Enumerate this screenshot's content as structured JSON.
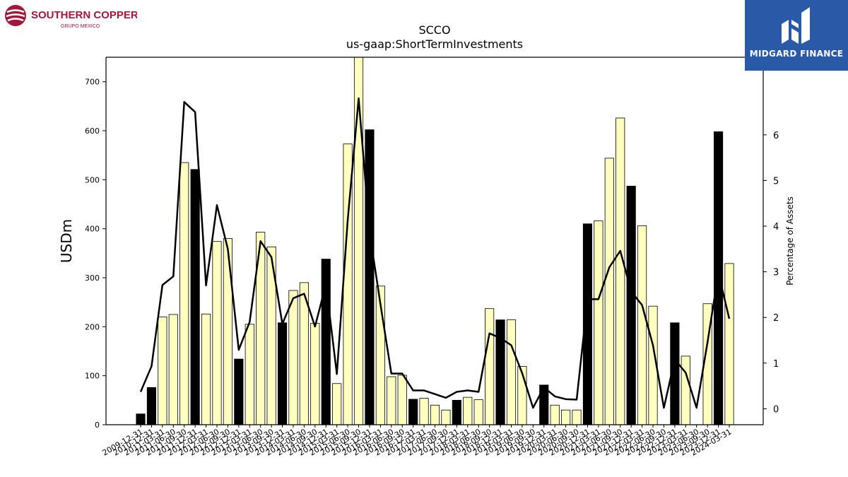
{
  "logos": {
    "left_name": "SOUTHERN COPPER",
    "left_sub": "GRUPO MEXICO",
    "right_name": "MIDGARD FINANCE",
    "left_color": "#a5173a",
    "right_bg": "#2a59a8"
  },
  "chart_data": {
    "type": "bar",
    "title": "SCCO",
    "subtitle": "us-gaap:ShortTermInvestments",
    "ylabel": "USDm",
    "y2label": "Percentage of Assets",
    "ylim": [
      0,
      750
    ],
    "y2lim": [
      -0.35,
      7.7
    ],
    "yticks": [
      0,
      100,
      200,
      300,
      400,
      500,
      600,
      700
    ],
    "y2ticks": [
      0,
      1,
      2,
      3,
      4,
      5,
      6
    ],
    "categories": [
      "2009-12-31",
      "2010-12-31",
      "2011-03-31",
      "2011-06-30",
      "2011-09-30",
      "2011-12-31",
      "2012-03-31",
      "2012-06-30",
      "2012-09-30",
      "2012-12-31",
      "2013-03-31",
      "2013-06-30",
      "2013-09-30",
      "2013-12-31",
      "2014-03-31",
      "2014-06-30",
      "2014-09-30",
      "2014-12-31",
      "2015-03-31",
      "2015-06-30",
      "2015-09-30",
      "2015-12-31",
      "2016-03-31",
      "2016-06-30",
      "2016-09-30",
      "2016-12-31",
      "2017-03-31",
      "2017-06-30",
      "2017-09-30",
      "2017-12-31",
      "2018-03-31",
      "2018-06-30",
      "2018-09-30",
      "2018-12-31",
      "2019-03-31",
      "2019-06-30",
      "2019-09-30",
      "2019-12-31",
      "2020-03-31",
      "2020-06-30",
      "2020-09-30",
      "2020-12-31",
      "2021-03-31",
      "2021-06-30",
      "2021-09-30",
      "2021-12-31",
      "2022-03-31",
      "2022-06-30",
      "2022-09-30",
      "2022-12-31",
      "2023-03-31",
      "2023-06-30",
      "2023-09-30",
      "2023-12-31",
      "2024-03-31"
    ],
    "values": [
      22,
      76,
      220,
      225,
      535,
      521,
      226,
      374,
      380,
      134,
      205,
      393,
      363,
      208,
      274,
      290,
      207,
      338,
      84,
      573,
      750,
      602,
      283,
      98,
      101,
      52,
      54,
      40,
      30,
      50,
      56,
      51,
      237,
      214,
      214,
      119,
      0,
      81,
      40,
      30,
      30,
      410,
      416,
      544,
      626,
      487,
      406,
      242,
      0,
      208,
      140,
      0,
      247,
      598,
      329
    ],
    "highlight": [
      true,
      true,
      false,
      false,
      false,
      true,
      false,
      false,
      false,
      true,
      false,
      false,
      false,
      true,
      false,
      false,
      false,
      true,
      false,
      false,
      false,
      true,
      false,
      false,
      false,
      true,
      false,
      false,
      false,
      true,
      false,
      false,
      false,
      true,
      false,
      false,
      false,
      true,
      false,
      false,
      false,
      true,
      false,
      false,
      false,
      true,
      false,
      false,
      false,
      true,
      false,
      false,
      false,
      true,
      false
    ],
    "pct_assets": [
      0.37,
      0.93,
      2.71,
      2.9,
      6.72,
      6.5,
      2.7,
      4.46,
      3.5,
      1.29,
      1.9,
      3.67,
      3.32,
      1.86,
      2.42,
      2.52,
      1.8,
      2.73,
      0.76,
      4.14,
      6.8,
      3.87,
      2.29,
      0.77,
      0.77,
      0.4,
      0.4,
      0.32,
      0.24,
      0.37,
      0.4,
      0.37,
      1.65,
      1.55,
      1.39,
      0.78,
      0.02,
      0.47,
      0.27,
      0.21,
      0.2,
      2.4,
      2.4,
      3.1,
      3.46,
      2.57,
      2.27,
      1.39,
      0.02,
      1.08,
      0.79,
      0.02,
      1.45,
      2.97,
      1.97
    ],
    "colors": {
      "bar_light": "#ffffc0",
      "bar_dark": "#000000",
      "line": "#000000"
    },
    "grid": false,
    "legend": "none"
  }
}
